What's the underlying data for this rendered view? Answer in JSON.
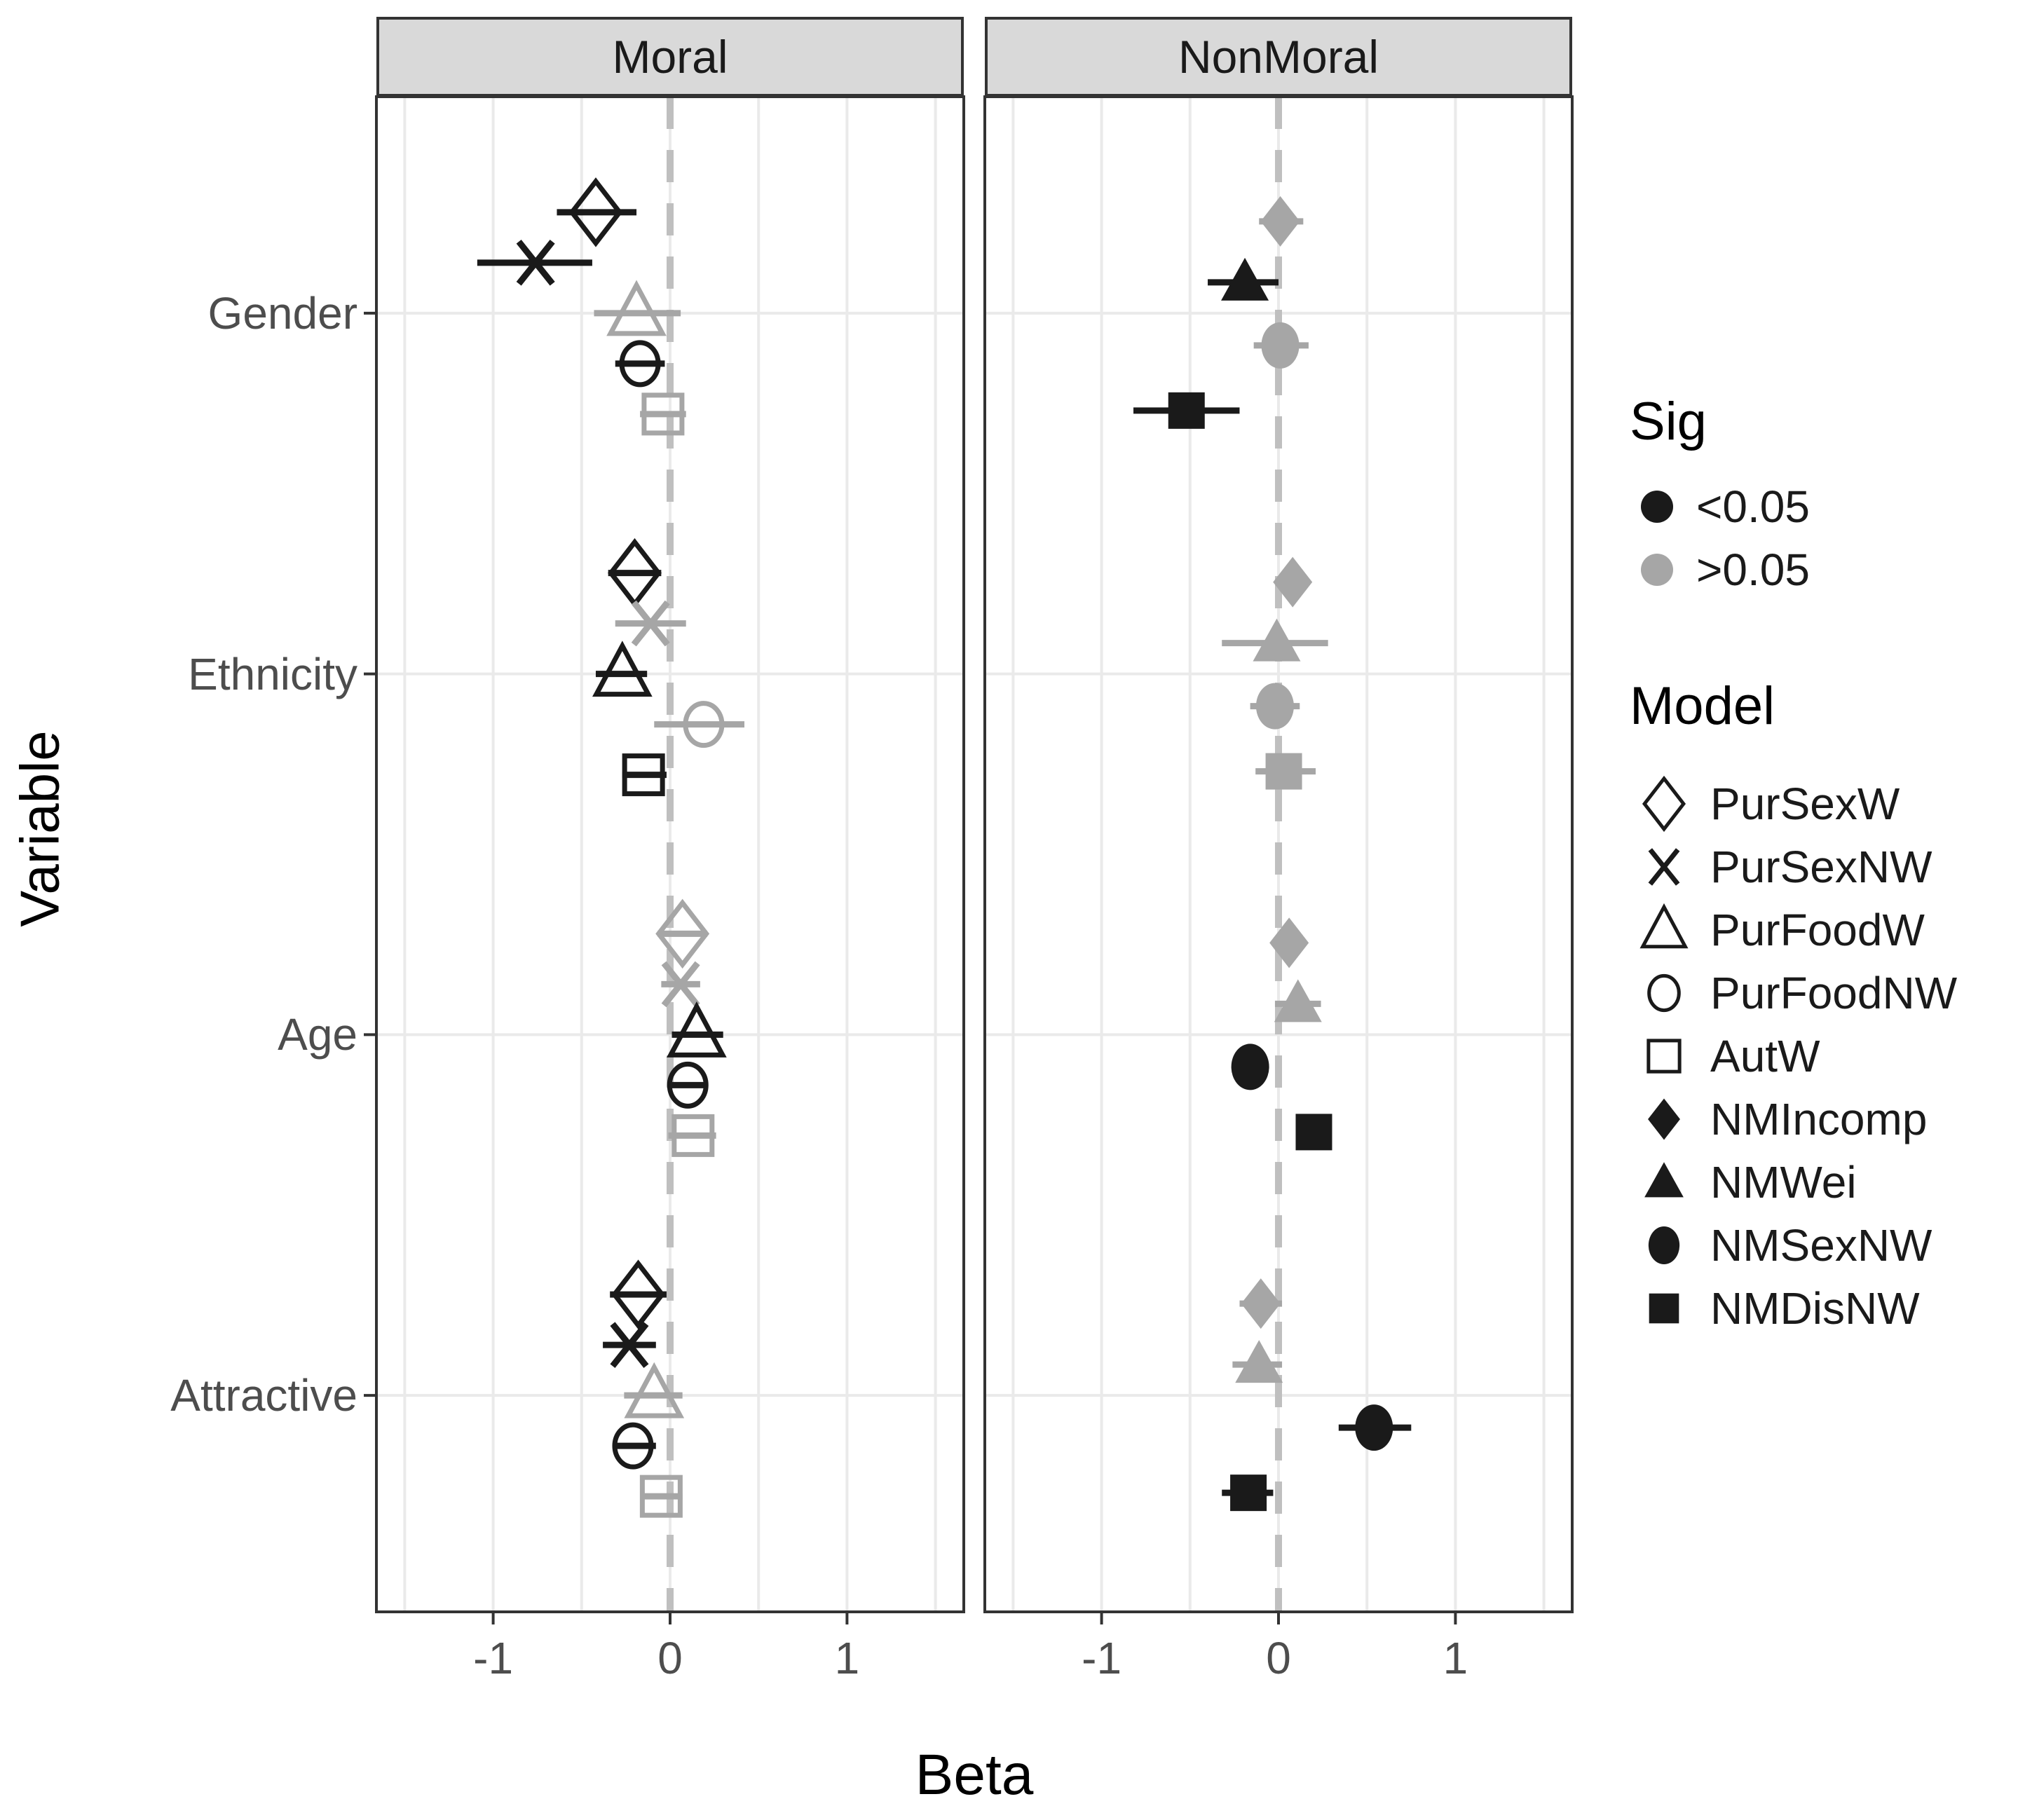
{
  "chart_data": {
    "type": "scatter",
    "subtype": "faceted-coefficient-forest-plot",
    "xlabel": "Beta",
    "ylabel": "Variable",
    "x_ticks": [
      "-1",
      "0",
      "1"
    ],
    "x_tick_values": [
      -1,
      0,
      1
    ],
    "x_range": [
      -1.66,
      1.66
    ],
    "grid": "on",
    "zero_reference_line": 0,
    "categories": [
      "Gender",
      "Ethnicity",
      "Age",
      "Attractive"
    ],
    "facets": [
      {
        "label": "Moral",
        "models": [
          "PurSexW",
          "PurSexNW",
          "PurFoodW",
          "PurFoodNW",
          "AutW"
        ],
        "points": [
          {
            "variable": "Gender",
            "model": "PurSexW",
            "beta": -0.42,
            "lo": -0.64,
            "hi": -0.19,
            "sig": "<0.05"
          },
          {
            "variable": "Gender",
            "model": "PurSexNW",
            "beta": -0.76,
            "lo": -1.09,
            "hi": -0.44,
            "sig": "<0.05"
          },
          {
            "variable": "Gender",
            "model": "PurFoodW",
            "beta": -0.19,
            "lo": -0.43,
            "hi": 0.06,
            "sig": ">0.05"
          },
          {
            "variable": "Gender",
            "model": "PurFoodNW",
            "beta": -0.17,
            "lo": -0.31,
            "hi": -0.03,
            "sig": "<0.05"
          },
          {
            "variable": "Gender",
            "model": "AutW",
            "beta": -0.04,
            "lo": -0.17,
            "hi": 0.09,
            "sig": ">0.05"
          },
          {
            "variable": "Ethnicity",
            "model": "PurSexW",
            "beta": -0.2,
            "lo": -0.35,
            "hi": -0.05,
            "sig": "<0.05"
          },
          {
            "variable": "Ethnicity",
            "model": "PurSexNW",
            "beta": -0.11,
            "lo": -0.31,
            "hi": 0.09,
            "sig": ">0.05"
          },
          {
            "variable": "Ethnicity",
            "model": "PurFoodW",
            "beta": -0.27,
            "lo": -0.42,
            "hi": -0.13,
            "sig": "<0.05"
          },
          {
            "variable": "Ethnicity",
            "model": "PurFoodNW",
            "beta": 0.19,
            "lo": -0.09,
            "hi": 0.42,
            "sig": ">0.05"
          },
          {
            "variable": "Ethnicity",
            "model": "AutW",
            "beta": -0.15,
            "lo": -0.27,
            "hi": -0.02,
            "sig": "<0.05"
          },
          {
            "variable": "Age",
            "model": "PurSexW",
            "beta": 0.07,
            "lo": -0.07,
            "hi": 0.21,
            "sig": ">0.05"
          },
          {
            "variable": "Age",
            "model": "PurSexNW",
            "beta": 0.06,
            "lo": -0.05,
            "hi": 0.17,
            "sig": ">0.05"
          },
          {
            "variable": "Age",
            "model": "PurFoodW",
            "beta": 0.15,
            "lo": 0.01,
            "hi": 0.3,
            "sig": "<0.05"
          },
          {
            "variable": "Age",
            "model": "PurFoodNW",
            "beta": 0.1,
            "lo": 0.01,
            "hi": 0.21,
            "sig": "<0.05"
          },
          {
            "variable": "Age",
            "model": "AutW",
            "beta": 0.13,
            "lo": -0.01,
            "hi": 0.26,
            "sig": ">0.05"
          },
          {
            "variable": "Attractive",
            "model": "PurSexW",
            "beta": -0.18,
            "lo": -0.34,
            "hi": -0.02,
            "sig": "<0.05"
          },
          {
            "variable": "Attractive",
            "model": "PurSexNW",
            "beta": -0.23,
            "lo": -0.38,
            "hi": -0.08,
            "sig": "<0.05"
          },
          {
            "variable": "Attractive",
            "model": "PurFoodW",
            "beta": -0.09,
            "lo": -0.26,
            "hi": 0.07,
            "sig": ">0.05"
          },
          {
            "variable": "Attractive",
            "model": "PurFoodNW",
            "beta": -0.21,
            "lo": -0.32,
            "hi": -0.08,
            "sig": "<0.05"
          },
          {
            "variable": "Attractive",
            "model": "AutW",
            "beta": -0.05,
            "lo": -0.17,
            "hi": 0.07,
            "sig": ">0.05"
          }
        ]
      },
      {
        "label": "NonMoral",
        "models": [
          "NMIncomp",
          "NMWei",
          "NMSexNW",
          "NMDisNW"
        ],
        "points": [
          {
            "variable": "Gender",
            "model": "NMIncomp",
            "beta": 0.01,
            "lo": -0.11,
            "hi": 0.14,
            "sig": ">0.05"
          },
          {
            "variable": "Gender",
            "model": "NMWei",
            "beta": -0.19,
            "lo": -0.4,
            "hi": 0.0,
            "sig": "<0.05"
          },
          {
            "variable": "Gender",
            "model": "NMSexNW",
            "beta": 0.01,
            "lo": -0.14,
            "hi": 0.17,
            "sig": ">0.05"
          },
          {
            "variable": "Gender",
            "model": "NMDisNW",
            "beta": -0.52,
            "lo": -0.82,
            "hi": -0.22,
            "sig": "<0.05"
          },
          {
            "variable": "Ethnicity",
            "model": "NMIncomp",
            "beta": 0.08,
            "lo": -0.01,
            "hi": 0.16,
            "sig": ">0.05"
          },
          {
            "variable": "Ethnicity",
            "model": "NMWei",
            "beta": -0.01,
            "lo": -0.32,
            "hi": 0.28,
            "sig": ">0.05"
          },
          {
            "variable": "Ethnicity",
            "model": "NMSexNW",
            "beta": -0.02,
            "lo": -0.16,
            "hi": 0.12,
            "sig": ">0.05"
          },
          {
            "variable": "Ethnicity",
            "model": "NMDisNW",
            "beta": 0.03,
            "lo": -0.13,
            "hi": 0.21,
            "sig": ">0.05"
          },
          {
            "variable": "Age",
            "model": "NMIncomp",
            "beta": 0.06,
            "lo": -0.02,
            "hi": 0.14,
            "sig": ">0.05"
          },
          {
            "variable": "Age",
            "model": "NMWei",
            "beta": 0.11,
            "lo": -0.02,
            "hi": 0.24,
            "sig": ">0.05"
          },
          {
            "variable": "Age",
            "model": "NMSexNW",
            "beta": -0.16,
            "lo": -0.26,
            "hi": -0.06,
            "sig": "<0.05"
          },
          {
            "variable": "Age",
            "model": "NMDisNW",
            "beta": 0.2,
            "lo": 0.1,
            "hi": 0.3,
            "sig": "<0.05"
          },
          {
            "variable": "Attractive",
            "model": "NMIncomp",
            "beta": -0.1,
            "lo": -0.22,
            "hi": 0.02,
            "sig": ">0.05"
          },
          {
            "variable": "Attractive",
            "model": "NMWei",
            "beta": -0.11,
            "lo": -0.26,
            "hi": 0.02,
            "sig": ">0.05"
          },
          {
            "variable": "Attractive",
            "model": "NMSexNW",
            "beta": 0.54,
            "lo": 0.34,
            "hi": 0.75,
            "sig": "<0.05"
          },
          {
            "variable": "Attractive",
            "model": "NMDisNW",
            "beta": -0.17,
            "lo": -0.32,
            "hi": -0.03,
            "sig": "<0.05"
          }
        ]
      }
    ],
    "legend_sig": {
      "title": "Sig",
      "entries": [
        {
          "label": "<0.05",
          "color": "#1a1a1a"
        },
        {
          "label": ">0.05",
          "color": "#a6a6a6"
        }
      ]
    },
    "legend_model": {
      "title": "Model",
      "entries": [
        {
          "label": "PurSexW",
          "shape": "diamond",
          "filled": false
        },
        {
          "label": "PurSexNW",
          "shape": "x",
          "filled": false
        },
        {
          "label": "PurFoodW",
          "shape": "triangle",
          "filled": false
        },
        {
          "label": "PurFoodNW",
          "shape": "circle",
          "filled": false
        },
        {
          "label": "AutW",
          "shape": "square",
          "filled": false
        },
        {
          "label": "NMIncomp",
          "shape": "diamond",
          "filled": true
        },
        {
          "label": "NMWei",
          "shape": "triangle",
          "filled": true
        },
        {
          "label": "NMSexNW",
          "shape": "circle",
          "filled": true
        },
        {
          "label": "NMDisNW",
          "shape": "square",
          "filled": true
        }
      ]
    },
    "colors": {
      "sig": "#1a1a1a",
      "nonsig": "#a6a6a6",
      "strip_bg": "#d9d9d9",
      "panel_border": "#333333",
      "grid": "#eaeaea",
      "zero_line": "#bfbfbf",
      "axis_text": "#4d4d4d"
    }
  }
}
